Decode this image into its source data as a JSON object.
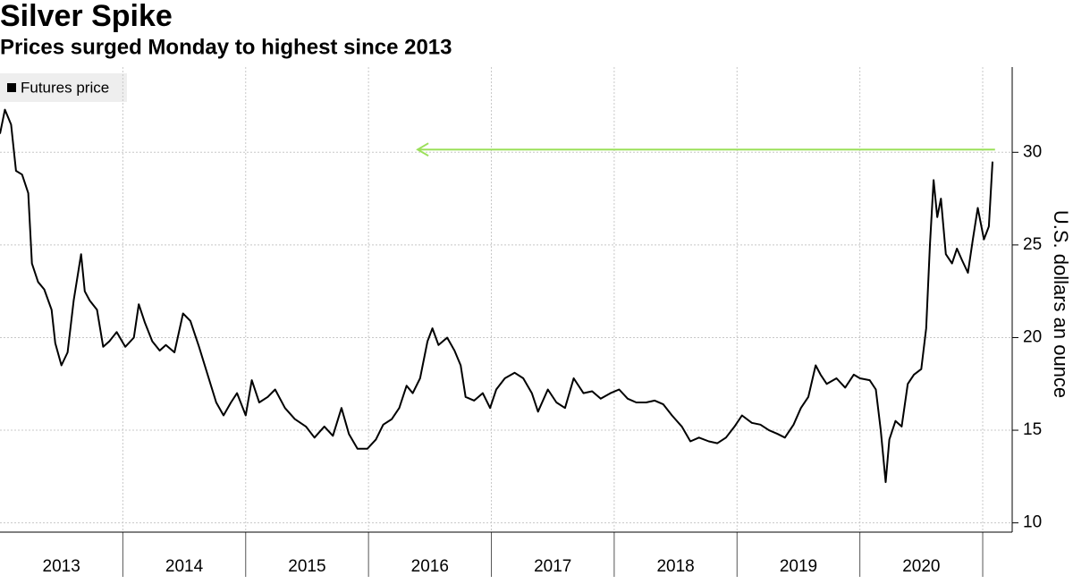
{
  "chart_data": {
    "type": "line",
    "title": "Silver Spike",
    "subtitle": "Prices surged Monday to highest since 2013",
    "y_axis_label": "U.S. dollars an ounce",
    "legend": "top-left",
    "grid": true,
    "xlim": [
      2013,
      2021.24
    ],
    "ylim": [
      9.5,
      34.6
    ],
    "yticks": [
      10,
      15,
      20,
      25,
      30
    ],
    "xticks": [
      {
        "value": 2013.5,
        "label": "2013"
      },
      {
        "value": 2014.5,
        "label": "2014"
      },
      {
        "value": 2015.5,
        "label": "2015"
      },
      {
        "value": 2016.5,
        "label": "2016"
      },
      {
        "value": 2017.5,
        "label": "2017"
      },
      {
        "value": 2018.5,
        "label": "2018"
      },
      {
        "value": 2019.5,
        "label": "2019"
      },
      {
        "value": 2020.5,
        "label": "2020"
      }
    ],
    "annotation_arrow": {
      "y": 30.15,
      "x": [
        2021.1,
        2016.4
      ],
      "color": "#9be05a"
    },
    "series": [
      {
        "name": "Futures price",
        "color": "#000000",
        "x": [
          2013.0,
          2013.04,
          2013.09,
          2013.13,
          2013.18,
          2013.23,
          2013.26,
          2013.31,
          2013.36,
          2013.42,
          2013.45,
          2013.5,
          2013.55,
          2013.6,
          2013.66,
          2013.69,
          2013.73,
          2013.79,
          2013.84,
          2013.89,
          2013.95,
          2014.02,
          2014.09,
          2014.13,
          2014.18,
          2014.24,
          2014.3,
          2014.35,
          2014.42,
          2014.49,
          2014.55,
          2014.62,
          2014.69,
          2014.76,
          2014.82,
          2014.88,
          2014.93,
          2015.0,
          2015.05,
          2015.11,
          2015.18,
          2015.24,
          2015.32,
          2015.4,
          2015.49,
          2015.56,
          2015.64,
          2015.71,
          2015.78,
          2015.84,
          2015.91,
          2015.99,
          2016.06,
          2016.12,
          2016.19,
          2016.25,
          2016.31,
          2016.36,
          2016.42,
          2016.48,
          2016.52,
          2016.57,
          2016.64,
          2016.7,
          2016.75,
          2016.79,
          2016.86,
          2016.93,
          2016.99,
          2017.04,
          2017.11,
          2017.19,
          2017.26,
          2017.33,
          2017.38,
          2017.46,
          2017.53,
          2017.6,
          2017.67,
          2017.75,
          2017.82,
          2017.89,
          2017.97,
          2018.04,
          2018.11,
          2018.18,
          2018.26,
          2018.33,
          2018.4,
          2018.47,
          2018.55,
          2018.62,
          2018.69,
          2018.77,
          2018.84,
          2018.91,
          2018.98,
          2019.04,
          2019.12,
          2019.19,
          2019.26,
          2019.33,
          2019.39,
          2019.46,
          2019.52,
          2019.58,
          2019.64,
          2019.68,
          2019.73,
          2019.81,
          2019.88,
          2019.95,
          2020.0,
          2020.08,
          2020.13,
          2020.17,
          2020.21,
          2020.24,
          2020.29,
          2020.34,
          2020.39,
          2020.44,
          2020.5,
          2020.54,
          2020.57,
          2020.6,
          2020.63,
          2020.66,
          2020.7,
          2020.75,
          2020.79,
          2020.83,
          2020.88,
          2020.92,
          2020.96,
          2021.01,
          2021.05,
          2021.08
        ],
        "values": [
          31.0,
          32.3,
          31.5,
          29.0,
          28.8,
          27.8,
          24.0,
          23.0,
          22.6,
          21.5,
          19.7,
          18.5,
          19.2,
          22.0,
          24.5,
          22.5,
          22.0,
          21.5,
          19.5,
          19.8,
          20.3,
          19.5,
          20.0,
          21.8,
          20.8,
          19.8,
          19.3,
          19.6,
          19.2,
          21.3,
          20.9,
          19.5,
          18.0,
          16.5,
          15.8,
          16.5,
          17.0,
          15.8,
          17.7,
          16.5,
          16.8,
          17.2,
          16.2,
          15.6,
          15.2,
          14.6,
          15.2,
          14.7,
          16.2,
          14.8,
          14.0,
          14.0,
          14.5,
          15.3,
          15.6,
          16.2,
          17.4,
          17.0,
          17.8,
          19.8,
          20.5,
          19.6,
          20.0,
          19.3,
          18.5,
          16.8,
          16.6,
          17.0,
          16.2,
          17.2,
          17.8,
          18.1,
          17.8,
          17.0,
          16.0,
          17.2,
          16.5,
          16.2,
          17.8,
          17.0,
          17.1,
          16.7,
          17.0,
          17.2,
          16.7,
          16.5,
          16.5,
          16.6,
          16.4,
          15.8,
          15.2,
          14.4,
          14.6,
          14.4,
          14.3,
          14.6,
          15.2,
          15.8,
          15.4,
          15.3,
          15.0,
          14.8,
          14.6,
          15.3,
          16.2,
          16.8,
          18.5,
          18.0,
          17.5,
          17.8,
          17.3,
          18.0,
          17.8,
          17.7,
          17.2,
          15.0,
          12.2,
          14.5,
          15.5,
          15.2,
          17.5,
          18.0,
          18.3,
          20.5,
          25.0,
          28.5,
          26.5,
          27.5,
          24.5,
          24.0,
          24.8,
          24.2,
          23.5,
          25.3,
          27.0,
          25.3,
          26.0,
          29.5
        ]
      }
    ]
  }
}
